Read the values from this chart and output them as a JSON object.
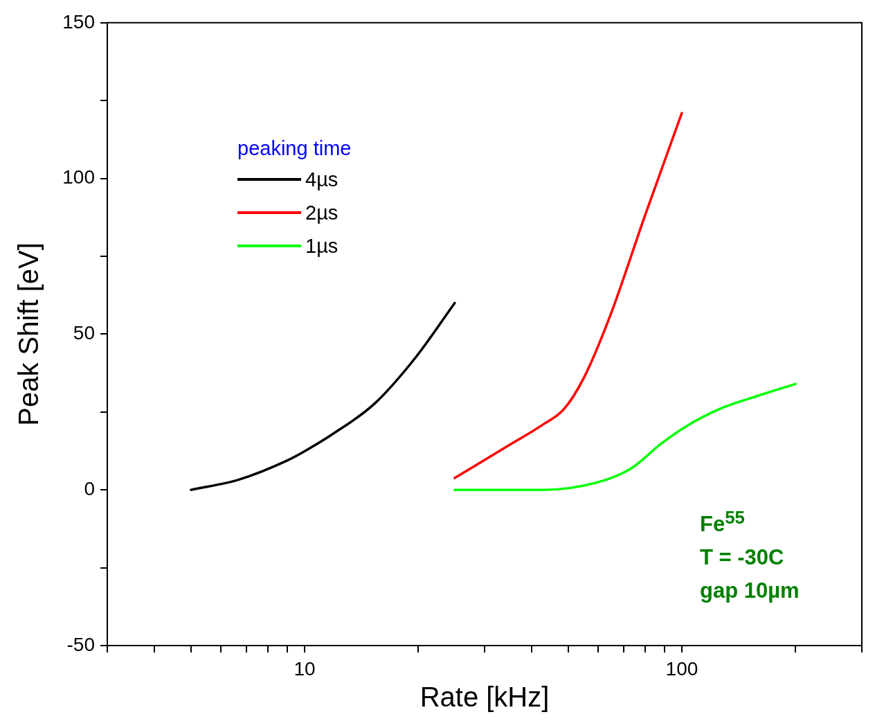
{
  "chart_data": {
    "type": "line",
    "xlabel": "Rate [kHz]",
    "ylabel": "Peak Shift [eV]",
    "legend_title": "peaking time",
    "log": "x",
    "grid": false,
    "legend": "top left",
    "line_style": "solid",
    "marker": "none",
    "xlim": [
      3,
      300
    ],
    "xticks": [
      {
        "value": 3,
        "label": null
      },
      {
        "value": 4,
        "label": null
      },
      {
        "value": 5,
        "label": null
      },
      {
        "value": 6,
        "label": null
      },
      {
        "value": 7,
        "label": null
      },
      {
        "value": 8,
        "label": null
      },
      {
        "value": 9,
        "label": null
      },
      10,
      {
        "value": 20,
        "label": null
      },
      {
        "value": 30,
        "label": null
      },
      {
        "value": 40,
        "label": null
      },
      {
        "value": 50,
        "label": null
      },
      {
        "value": 60,
        "label": null
      },
      {
        "value": 70,
        "label": null
      },
      {
        "value": 80,
        "label": null
      },
      {
        "value": 90,
        "label": null
      },
      100,
      {
        "value": 200,
        "label": null
      },
      {
        "value": 300,
        "label": null
      }
    ],
    "ylim": [
      -50,
      150
    ],
    "yticks": [
      -50,
      {
        "value": -25,
        "label": null
      },
      0,
      {
        "value": 25,
        "label": null
      },
      50,
      {
        "value": 75,
        "label": null
      },
      100,
      {
        "value": 125,
        "label": null
      },
      150
    ],
    "annotations": [
      "Fe$^{55}$",
      "T = -30C",
      "gap 10µm"
    ],
    "series": [
      {
        "name": "4µs",
        "color": "#000000",
        "x": [
          5,
          6.7,
          8.95,
          10,
          11.9,
          15.3,
          19.6,
          25
        ],
        "values": [
          0,
          3.3,
          9.3,
          12.4,
          18,
          27.6,
          42.2,
          60
        ]
      },
      {
        "name": "2µs",
        "color": "#ff0000",
        "x": [
          25,
          33.5,
          43,
          48.6,
          55,
          64.8,
          79.6,
          100
        ],
        "values": [
          3.8,
          13.1,
          21.1,
          25.8,
          36,
          56.4,
          87.6,
          121
        ]
      },
      {
        "name": "1µs",
        "color": "#00ff00",
        "x": [
          25,
          43,
          59.7,
          73.4,
          88.3,
          102,
          126,
          161,
          200
        ],
        "values": [
          0,
          0,
          2.4,
          6.9,
          14.9,
          20.2,
          26,
          30.4,
          34
        ]
      }
    ]
  }
}
